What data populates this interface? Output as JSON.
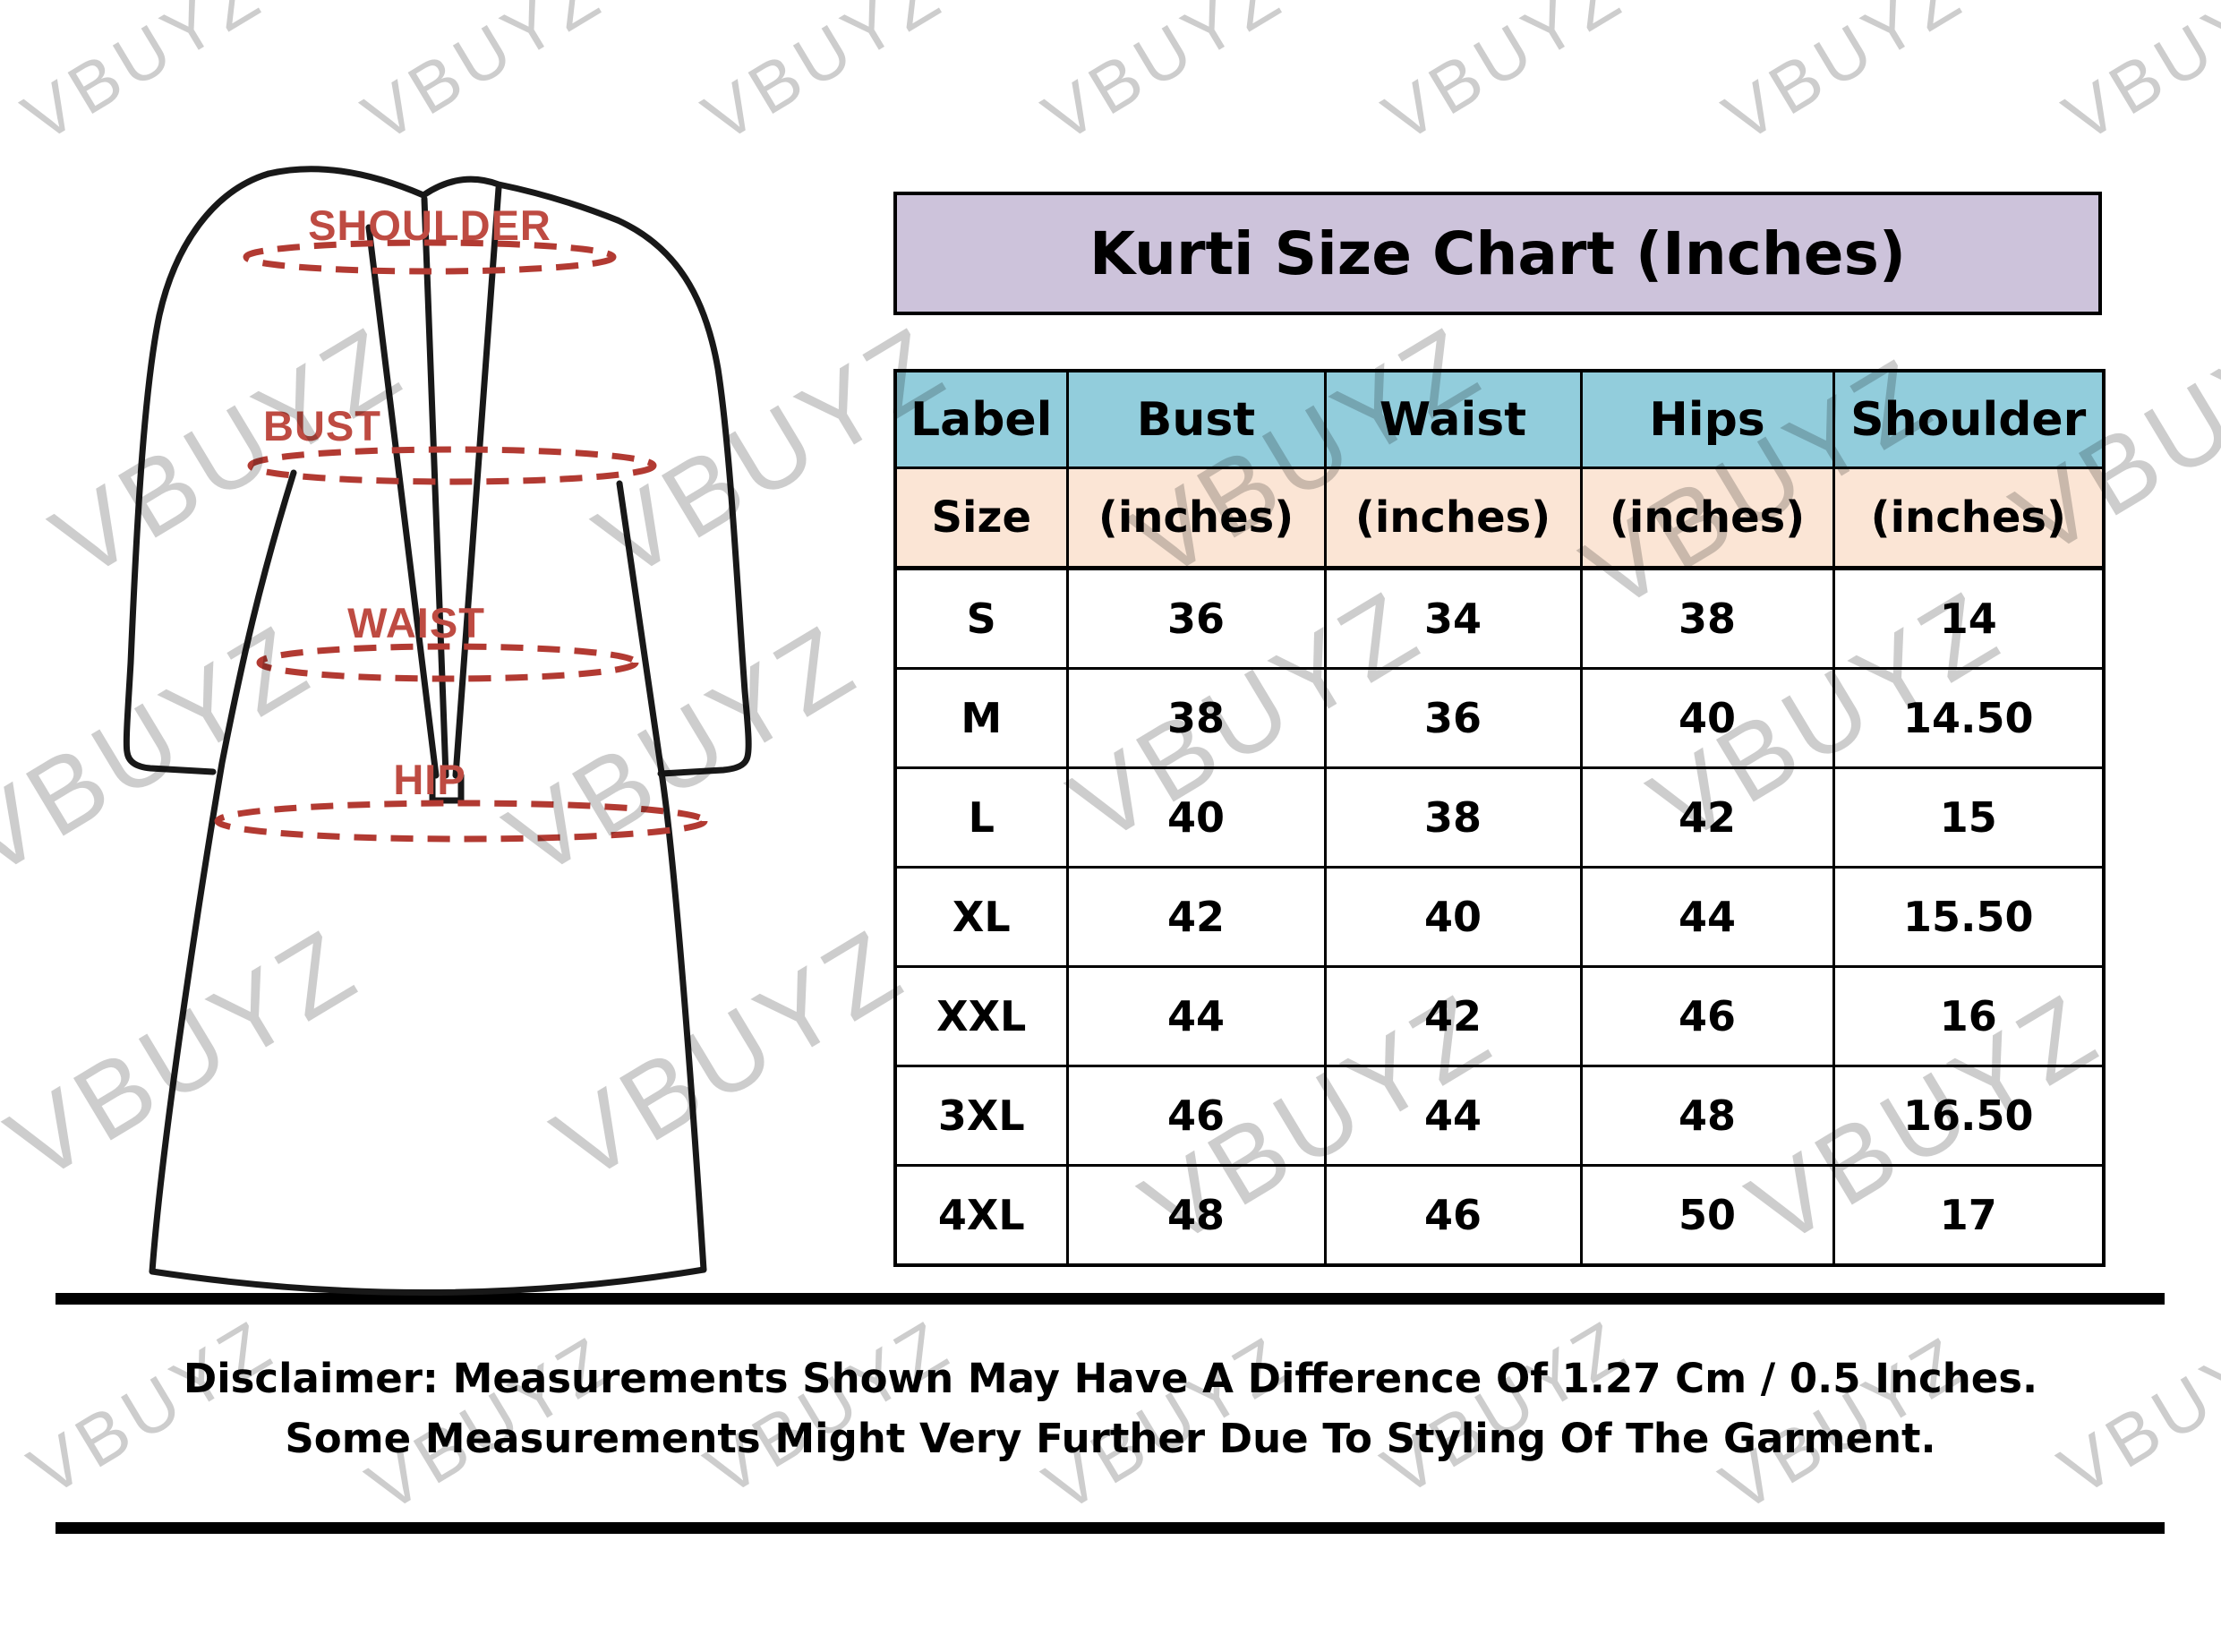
{
  "watermark": {
    "text": "VBUYZ"
  },
  "title": "Kurti Size Chart (Inches)",
  "table": {
    "columns": [
      "Label",
      "Bust",
      "Waist",
      "Hips",
      "Shoulder"
    ],
    "subheader": [
      "Size",
      "(inches)",
      "(inches)",
      "(inches)",
      "(inches)"
    ],
    "rows": [
      {
        "label": "S",
        "bust": "36",
        "waist": "34",
        "hips": "38",
        "shoulder": "14"
      },
      {
        "label": "M",
        "bust": "38",
        "waist": "36",
        "hips": "40",
        "shoulder": "14.50"
      },
      {
        "label": "L",
        "bust": "40",
        "waist": "38",
        "hips": "42",
        "shoulder": "15"
      },
      {
        "label": "XL",
        "bust": "42",
        "waist": "40",
        "hips": "44",
        "shoulder": "15.50"
      },
      {
        "label": "XXL",
        "bust": "44",
        "waist": "42",
        "hips": "46",
        "shoulder": "16"
      },
      {
        "label": "3XL",
        "bust": "46",
        "waist": "44",
        "hips": "48",
        "shoulder": "16.50"
      },
      {
        "label": "4XL",
        "bust": "48",
        "waist": "46",
        "hips": "50",
        "shoulder": "17"
      }
    ]
  },
  "garment": {
    "labels": [
      "SHOULDER",
      "BUST",
      "WAIST",
      "HIP"
    ]
  },
  "disclaimer": {
    "line1": "Disclaimer: Measurements Shown May Have A Difference Of 1.27 Cm / 0.5 Inches.",
    "line2": "Some Measurements Might Very Further Due To Styling Of The Garment."
  },
  "colors": {
    "banner_bg": "#CDC3DB",
    "header_blue": "#92CDDC",
    "header_peach": "#FBE5D5",
    "border": "#000000",
    "garment_label_red": "#BE4B42",
    "measure_dash_red": "#B23A32",
    "watermark_gray": "#CDCDCD"
  }
}
